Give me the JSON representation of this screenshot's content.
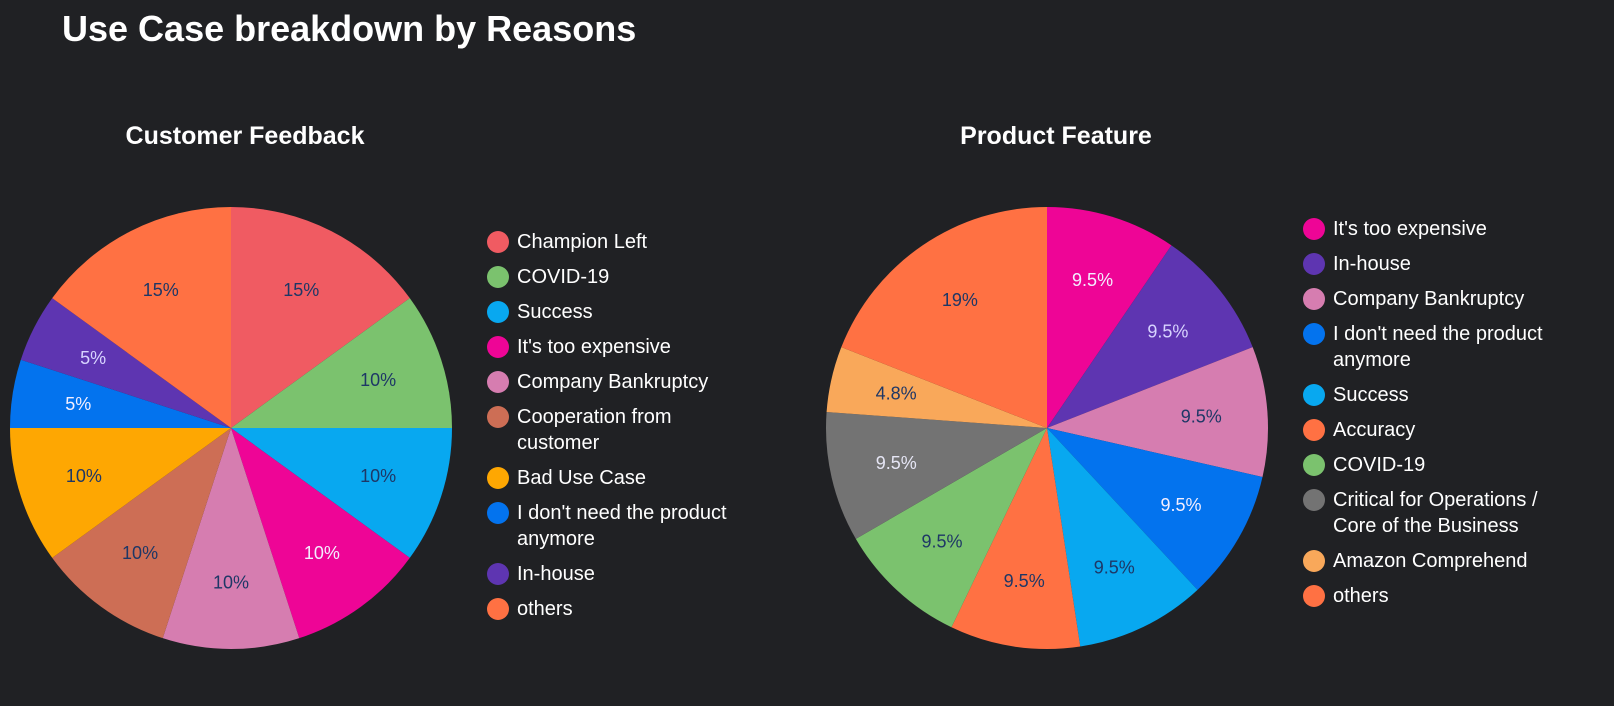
{
  "title": "Use Case breakdown by Reasons",
  "chart_data": [
    {
      "type": "pie",
      "title": "Customer Feedback",
      "legend_position": "right",
      "slices": [
        {
          "name": "Champion Left",
          "value": 15,
          "label": "15%",
          "color": "#f05b62",
          "label_color": "#1e3766"
        },
        {
          "name": "COVID-19",
          "value": 10,
          "label": "10%",
          "color": "#7bc26e",
          "label_color": "#1e3766"
        },
        {
          "name": "Success",
          "value": 10,
          "label": "10%",
          "color": "#08a8f0",
          "label_color": "#1e3766"
        },
        {
          "name": "It's too expensive",
          "value": 10,
          "label": "10%",
          "color": "#ee0596",
          "label_color": "#f3eeff"
        },
        {
          "name": "Company Bankruptcy",
          "value": 10,
          "label": "10%",
          "color": "#d67db0",
          "label_color": "#1e3766"
        },
        {
          "name": "Cooperation from customer",
          "value": 10,
          "label": "10%",
          "color": "#cd6e55",
          "label_color": "#1e3766"
        },
        {
          "name": "Bad Use Case",
          "value": 10,
          "label": "10%",
          "color": "#fea702",
          "label_color": "#1e3766"
        },
        {
          "name": "I don't need the product anymore",
          "value": 5,
          "label": "5%",
          "color": "#0373ee",
          "label_color": "#f3eeff"
        },
        {
          "name": "In-house",
          "value": 5,
          "label": "5%",
          "color": "#5e35b1",
          "label_color": "#d8d4ff"
        },
        {
          "name": "others",
          "value": 15,
          "label": "15%",
          "color": "#ff7143",
          "label_color": "#1e3766"
        }
      ]
    },
    {
      "type": "pie",
      "title": "Product Feature",
      "legend_position": "right",
      "slices": [
        {
          "name": "It's too expensive",
          "value": 9.5,
          "label": "9.5%",
          "color": "#ee0596",
          "label_color": "#f3eeff"
        },
        {
          "name": "In-house",
          "value": 9.5,
          "label": "9.5%",
          "color": "#5e35b1",
          "label_color": "#d8d4ff"
        },
        {
          "name": "Company Bankruptcy",
          "value": 9.5,
          "label": "9.5%",
          "color": "#d67db0",
          "label_color": "#1e3766"
        },
        {
          "name": "I don't need the product anymore",
          "value": 9.5,
          "label": "9.5%",
          "color": "#0373ee",
          "label_color": "#f3eeff"
        },
        {
          "name": "Success",
          "value": 9.5,
          "label": "9.5%",
          "color": "#08a8f0",
          "label_color": "#1e3766"
        },
        {
          "name": "Accuracy",
          "value": 9.5,
          "label": "9.5%",
          "color": "#ff7143",
          "label_color": "#1e3766"
        },
        {
          "name": "COVID-19",
          "value": 9.5,
          "label": "9.5%",
          "color": "#7bc26e",
          "label_color": "#1e3766"
        },
        {
          "name": "Critical for Operations / Core of the Business",
          "value": 9.5,
          "label": "9.5%",
          "color": "#737373",
          "label_color": "#e6e6f5"
        },
        {
          "name": "Amazon Comprehend",
          "value": 4.8,
          "label": "4.8%",
          "color": "#f9a85a",
          "label_color": "#1e3766"
        },
        {
          "name": "others",
          "value": 19,
          "label": "19%",
          "color": "#ff7143",
          "label_color": "#1e3766"
        }
      ]
    }
  ]
}
